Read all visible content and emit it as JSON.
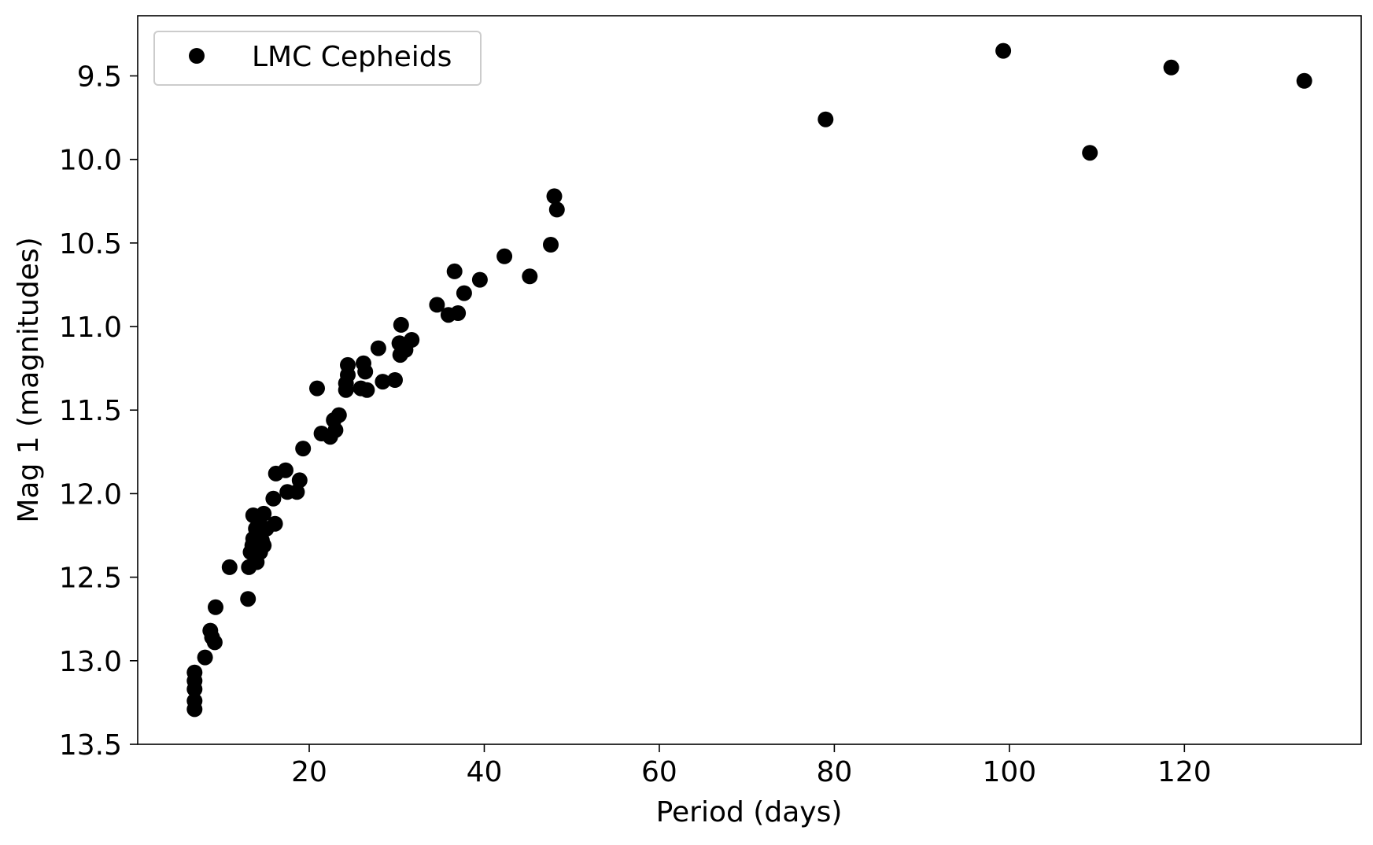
{
  "colors": {
    "marker": "#000000",
    "axes": "#000000",
    "background": "#ffffff",
    "legend_border": "#cccccc"
  },
  "chart_data": {
    "type": "scatter",
    "title": "",
    "xlabel": "Period (days)",
    "ylabel": "Mag 1 (magnitudes)",
    "xlim": [
      0.4,
      140.2
    ],
    "ylim": [
      13.5,
      9.14
    ],
    "y_inverted": true,
    "grid": false,
    "legend_position": "top-left",
    "xticks": [
      20,
      40,
      60,
      80,
      100,
      120
    ],
    "xtick_labels": [
      "20",
      "40",
      "60",
      "80",
      "100",
      "120"
    ],
    "yticks": [
      9.5,
      10.0,
      10.5,
      11.0,
      11.5,
      12.0,
      12.5,
      13.0,
      13.5
    ],
    "ytick_labels": [
      "9.5",
      "10.0",
      "10.5",
      "11.0",
      "11.5",
      "12.0",
      "12.5",
      "13.0",
      "13.5"
    ],
    "series": [
      {
        "name": "LMC Cepheids",
        "marker": "circle",
        "points": [
          [
            6.9,
            13.07
          ],
          [
            6.9,
            13.12
          ],
          [
            6.9,
            13.17
          ],
          [
            6.9,
            13.24
          ],
          [
            6.9,
            13.29
          ],
          [
            8.1,
            12.98
          ],
          [
            8.7,
            12.82
          ],
          [
            8.9,
            12.86
          ],
          [
            9.2,
            12.89
          ],
          [
            9.3,
            12.68
          ],
          [
            10.9,
            12.44
          ],
          [
            13.0,
            12.63
          ],
          [
            13.1,
            12.44
          ],
          [
            13.3,
            12.35
          ],
          [
            13.5,
            12.31
          ],
          [
            13.6,
            12.27
          ],
          [
            13.6,
            12.13
          ],
          [
            13.9,
            12.21
          ],
          [
            14.0,
            12.41
          ],
          [
            14.2,
            12.18
          ],
          [
            14.4,
            12.35
          ],
          [
            14.6,
            12.28
          ],
          [
            14.8,
            12.31
          ],
          [
            14.8,
            12.12
          ],
          [
            15.1,
            12.21
          ],
          [
            15.9,
            12.03
          ],
          [
            16.1,
            12.18
          ],
          [
            16.2,
            11.88
          ],
          [
            17.3,
            11.86
          ],
          [
            17.5,
            11.99
          ],
          [
            18.6,
            11.99
          ],
          [
            18.9,
            11.92
          ],
          [
            19.3,
            11.73
          ],
          [
            20.9,
            11.37
          ],
          [
            21.4,
            11.64
          ],
          [
            22.4,
            11.66
          ],
          [
            22.8,
            11.56
          ],
          [
            23.0,
            11.62
          ],
          [
            23.4,
            11.53
          ],
          [
            24.2,
            11.38
          ],
          [
            24.2,
            11.34
          ],
          [
            24.4,
            11.29
          ],
          [
            24.4,
            11.23
          ],
          [
            25.9,
            11.37
          ],
          [
            26.2,
            11.22
          ],
          [
            26.4,
            11.27
          ],
          [
            26.6,
            11.38
          ],
          [
            27.9,
            11.13
          ],
          [
            28.4,
            11.33
          ],
          [
            29.8,
            11.32
          ],
          [
            30.3,
            11.1
          ],
          [
            30.4,
            11.17
          ],
          [
            30.5,
            10.99
          ],
          [
            31.0,
            11.14
          ],
          [
            31.7,
            11.08
          ],
          [
            34.6,
            10.87
          ],
          [
            35.9,
            10.93
          ],
          [
            36.6,
            10.67
          ],
          [
            37.0,
            10.92
          ],
          [
            37.7,
            10.8
          ],
          [
            39.5,
            10.72
          ],
          [
            42.3,
            10.58
          ],
          [
            45.2,
            10.7
          ],
          [
            47.6,
            10.51
          ],
          [
            48.0,
            10.22
          ],
          [
            48.3,
            10.3
          ],
          [
            79.0,
            9.76
          ],
          [
            99.3,
            9.35
          ],
          [
            109.2,
            9.96
          ],
          [
            118.5,
            9.45
          ],
          [
            133.7,
            9.53
          ]
        ]
      }
    ]
  }
}
